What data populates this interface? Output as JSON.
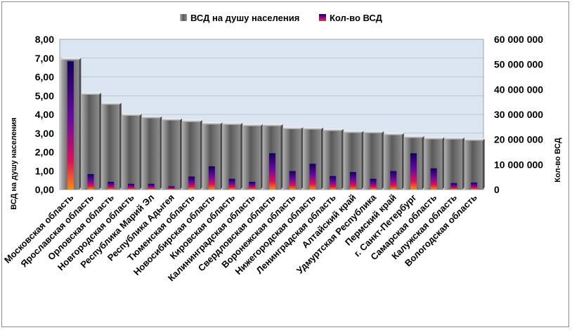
{
  "chart_data": {
    "type": "bar",
    "categories": [
      "Московская область",
      "Ярославская область",
      "Орловская область",
      "Новгородская область",
      "Республика Марий Эл",
      "Республика Адыгея",
      "Тюменская область",
      "Новосибирская область",
      "Кировская область",
      "Калининградская область",
      "Свердловская область",
      "Воронежская область",
      "Нижегородская область",
      "Ленинградская область",
      "Алтайский край",
      "Удмуртская Республика",
      "Пермский край",
      "г. Санкт-Петербург",
      "Самарская область",
      "Калужская область",
      "Вологодская область"
    ],
    "series": [
      {
        "name": "ВСД на душу населения",
        "axis": "left",
        "color": "#808080",
        "values": [
          6.9,
          5.05,
          4.52,
          3.93,
          3.8,
          3.68,
          3.6,
          3.47,
          3.45,
          3.38,
          3.38,
          3.22,
          3.2,
          3.12,
          3.02,
          3.0,
          2.9,
          2.75,
          2.68,
          2.67,
          2.6
        ]
      },
      {
        "name": "Кол-во ВСД",
        "axis": "right",
        "color": "#1a0080",
        "values": [
          51200000,
          6200000,
          3100000,
          2300000,
          2300000,
          1300000,
          5200000,
          9300000,
          4300000,
          3100000,
          14500000,
          7400000,
          10300000,
          5400000,
          7000000,
          4300000,
          7400000,
          14500000,
          8500000,
          2600000,
          2800000
        ]
      }
    ],
    "ylabel": "ВСД на душу населения",
    "y2label": "Кол-во ВСД",
    "ylim": [
      0,
      8
    ],
    "y2lim": [
      0,
      60000000
    ],
    "yticks": [
      "0,00",
      "1,00",
      "2,00",
      "3,00",
      "4,00",
      "5,00",
      "6,00",
      "7,00",
      "8,00"
    ],
    "y2ticks": [
      "0",
      "10 000 000",
      "20 000 000",
      "30 000 000",
      "40 000 000",
      "50 000 000",
      "60 000 000"
    ],
    "legend_position": "top",
    "grid": true,
    "plot_background": "#dce6f2"
  }
}
